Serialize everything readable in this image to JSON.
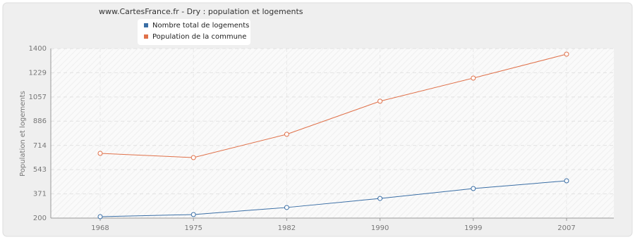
{
  "chart_data": {
    "type": "line",
    "title": "www.CartesFrance.fr - Dry : population et logements",
    "y_label": "Population et logements",
    "categories": [
      "1968",
      "1975",
      "1982",
      "1990",
      "1999",
      "2007"
    ],
    "series": [
      {
        "name": "Nombre total de logements",
        "color": "#3a6ea5",
        "values": [
          210,
          225,
          275,
          339,
          409,
          464
        ]
      },
      {
        "name": "Population de la commune",
        "color": "#e0714a",
        "values": [
          658,
          628,
          793,
          1027,
          1191,
          1360
        ]
      }
    ],
    "ylim": [
      200,
      1400
    ],
    "yticks": [
      200,
      371,
      543,
      714,
      886,
      1057,
      1229,
      1400
    ],
    "grid": true
  }
}
